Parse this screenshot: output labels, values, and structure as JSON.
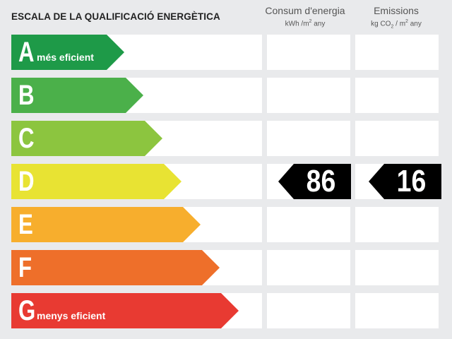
{
  "chart_data": {
    "type": "bar",
    "title": "ESCALA DE LA QUALIFICACIÓ ENERGÈTICA",
    "categories": [
      "A",
      "B",
      "C",
      "D",
      "E",
      "F",
      "G"
    ],
    "category_notes": {
      "A": "més eficient",
      "G": "menys eficient"
    },
    "colors": [
      "#1e9a48",
      "#4bb04a",
      "#8cc53f",
      "#e8e333",
      "#f7ae2d",
      "#ee6f2a",
      "#e83a32"
    ],
    "columns": [
      {
        "title": "Consum d'energia",
        "unit_prefix": "kWh /m",
        "unit_sup": "2",
        "unit_suffix": " any"
      },
      {
        "title": "Emissions",
        "unit_prefix": "kg CO",
        "unit_sub": "2",
        "unit_mid": " / m",
        "unit_sup": "2",
        "unit_suffix": " any"
      }
    ],
    "ratings": [
      {
        "column": "Consum d'energia",
        "category": "D",
        "value": 86
      },
      {
        "column": "Emissions",
        "category": "D",
        "value": 16
      }
    ]
  }
}
